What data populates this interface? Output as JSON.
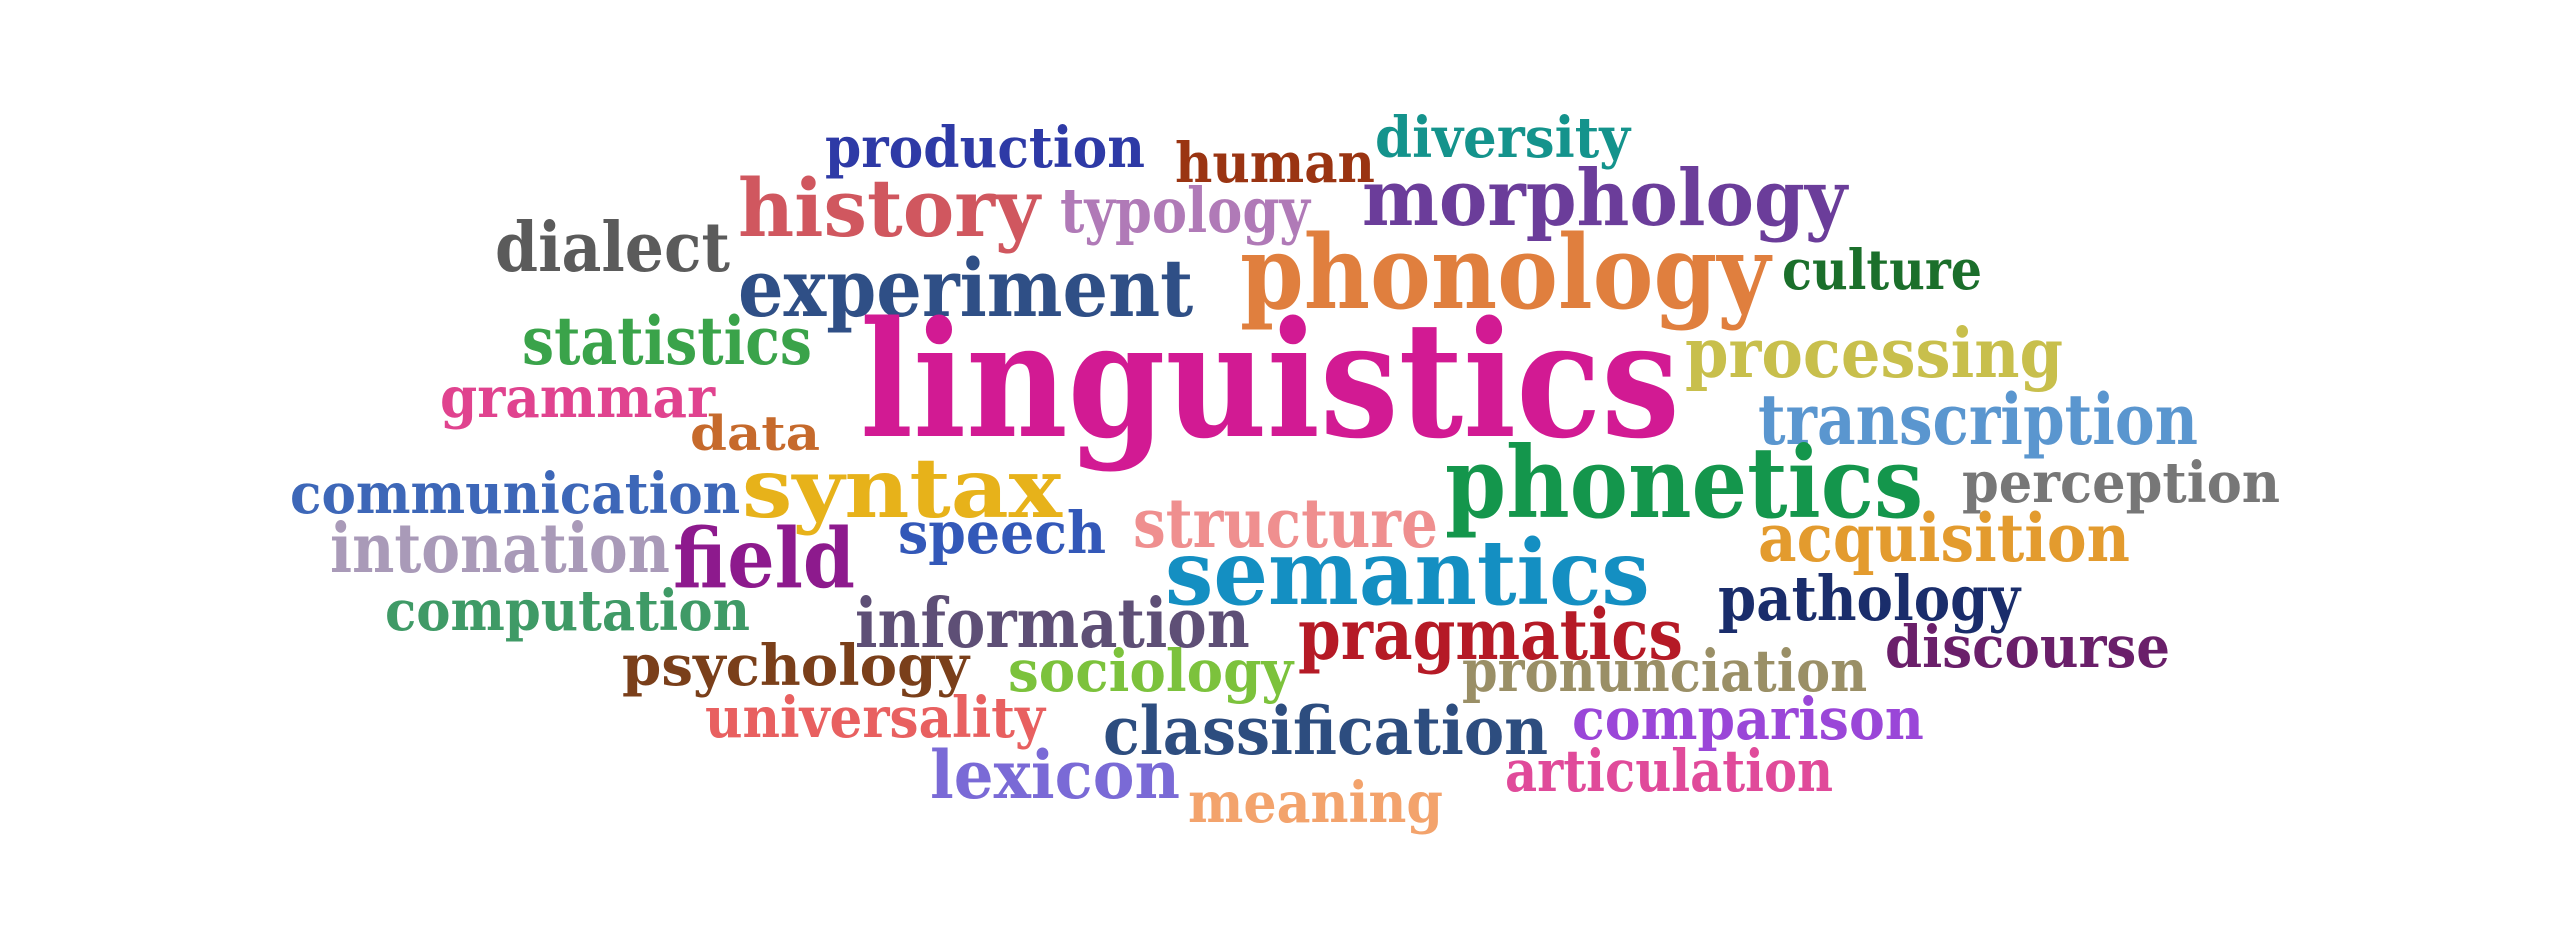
{
  "words": [
    {
      "text": "production",
      "color": "#2e3aa6"
    },
    {
      "text": "human",
      "color": "#9a3412"
    },
    {
      "text": "diversity",
      "color": "#14938c"
    },
    {
      "text": "history",
      "color": "#d0575f"
    },
    {
      "text": "typology",
      "color": "#b07ab7"
    },
    {
      "text": "morphology",
      "color": "#6b3d9a"
    },
    {
      "text": "dialect",
      "color": "#5b5b5b"
    },
    {
      "text": "experiment",
      "color": "#2f4f86"
    },
    {
      "text": "phonology",
      "color": "#e07f3e"
    },
    {
      "text": "culture",
      "color": "#1b6f2b"
    },
    {
      "text": "statistics",
      "color": "#3aa34a"
    },
    {
      "text": "linguistics",
      "color": "#d21a93"
    },
    {
      "text": "processing",
      "color": "#c8bf4c"
    },
    {
      "text": "grammar",
      "color": "#e0438f"
    },
    {
      "text": "transcription",
      "color": "#5a96cf"
    },
    {
      "text": "data",
      "color": "#c66a2c"
    },
    {
      "text": "communication",
      "color": "#3d67b8"
    },
    {
      "text": "syntax",
      "color": "#e7b21a"
    },
    {
      "text": "phonetics",
      "color": "#14964c"
    },
    {
      "text": "perception",
      "color": "#777777"
    },
    {
      "text": "structure",
      "color": "#ef8f8f"
    },
    {
      "text": "intonation",
      "color": "#a99ab8"
    },
    {
      "text": "field",
      "color": "#8d1a8d"
    },
    {
      "text": "speech",
      "color": "#3358b8"
    },
    {
      "text": "acquisition",
      "color": "#e39b2e"
    },
    {
      "text": "semantics",
      "color": "#148fc2"
    },
    {
      "text": "computation",
      "color": "#3f9a66"
    },
    {
      "text": "information",
      "color": "#5e4f76"
    },
    {
      "text": "pathology",
      "color": "#1a2d6b"
    },
    {
      "text": "pragmatics",
      "color": "#b51a26"
    },
    {
      "text": "discourse",
      "color": "#6a1f6a"
    },
    {
      "text": "psychology",
      "color": "#7a3f1a"
    },
    {
      "text": "sociology",
      "color": "#7cc23c"
    },
    {
      "text": "pronunciation",
      "color": "#9a8f66"
    },
    {
      "text": "universality",
      "color": "#e86060"
    },
    {
      "text": "classification",
      "color": "#2d4d7f"
    },
    {
      "text": "comparison",
      "color": "#9a46d8"
    },
    {
      "text": "lexicon",
      "color": "#7a6ad6"
    },
    {
      "text": "articulation",
      "color": "#e04a9a"
    },
    {
      "text": "meaning",
      "color": "#f3a36c"
    }
  ]
}
